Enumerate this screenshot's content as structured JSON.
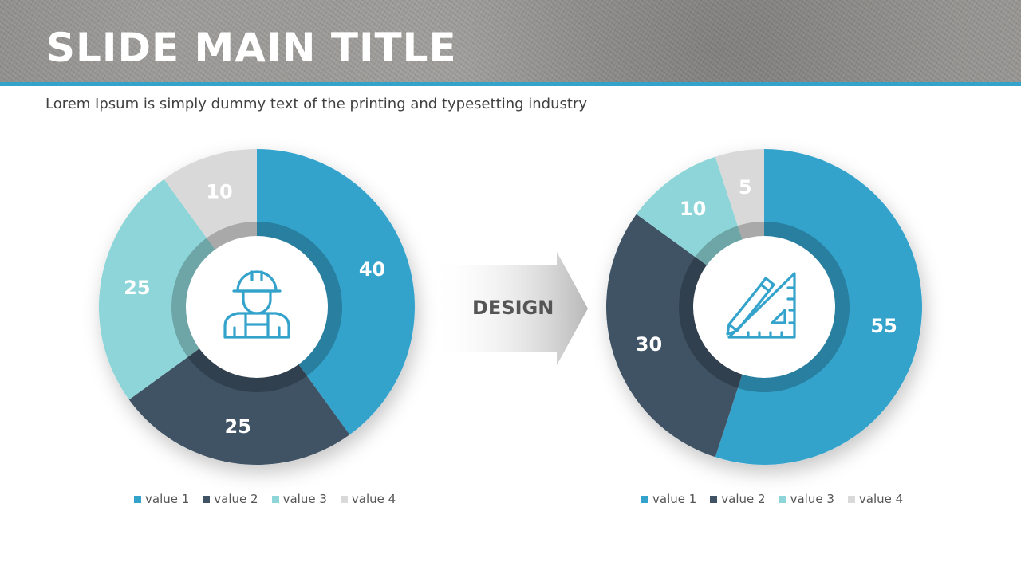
{
  "slide": {
    "title": "SLIDE MAIN TITLE",
    "subtitle": "Lorem Ipsum is simply dummy text of the printing and typesetting industry",
    "arrow_label": "DESIGN"
  },
  "colors": {
    "accent_rule": "#34a3cc",
    "value_1": "#34a3cc",
    "value_2": "#3f5365",
    "value_3": "#8dd5d8",
    "value_4": "#d9d9d9"
  },
  "chart_data": [
    {
      "type": "pie",
      "variant": "donut",
      "center_icon": "construction-worker-icon",
      "categories": [
        "value 1",
        "value 2",
        "value 3",
        "value 4"
      ],
      "values": [
        40,
        25,
        25,
        10
      ],
      "colors": [
        "#34a3cc",
        "#3f5365",
        "#8dd5d8",
        "#d9d9d9"
      ],
      "data_labels": [
        "40",
        "25",
        "25",
        "10"
      ],
      "legend_position": "bottom"
    },
    {
      "type": "pie",
      "variant": "donut",
      "center_icon": "ruler-triangle-pencil-icon",
      "categories": [
        "value 1",
        "value 2",
        "value 3",
        "value 4"
      ],
      "values": [
        55,
        30,
        10,
        5
      ],
      "colors": [
        "#34a3cc",
        "#3f5365",
        "#8dd5d8",
        "#d9d9d9"
      ],
      "data_labels": [
        "55",
        "30",
        "10",
        "5"
      ],
      "legend_position": "bottom"
    }
  ]
}
